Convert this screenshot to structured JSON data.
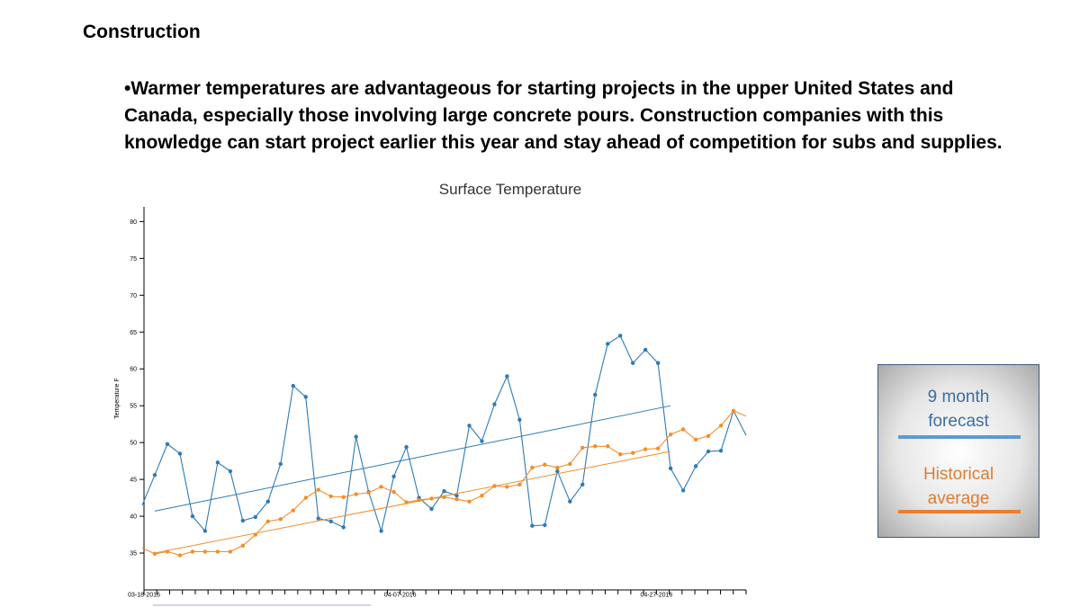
{
  "slide": {
    "heading": "Construction",
    "bullet": "•Warmer temperatures are advantageous for starting projects in the upper United States and Canada, especially those involving large concrete pours.  Construction companies with this knowledge can start project earlier this year and stay ahead of competition for subs and supplies."
  },
  "colors": {
    "forecast": "#2c7bb6",
    "historical": "#f28e2b"
  },
  "chart_data": {
    "type": "line",
    "title": "Surface Temperature",
    "ylabel": "Temperature F",
    "xlabel": "",
    "ylim": [
      30,
      82
    ],
    "y_ticks": [
      35,
      40,
      45,
      50,
      55,
      60,
      65,
      70,
      75,
      80
    ],
    "x_tick_labels": [
      "03-18-2016",
      "04-07-2016",
      "04-27-2016"
    ],
    "x_tick_label_indices": [
      0,
      20,
      40
    ],
    "x_tick_count": 48,
    "series": [
      {
        "name": "9 month forecast",
        "values": [
          41.5,
          45.6,
          49.8,
          48.5,
          40.0,
          38.0,
          47.3,
          46.1,
          39.4,
          39.9,
          42.0,
          47.1,
          57.7,
          56.2,
          39.7,
          39.3,
          38.5,
          50.8,
          43.3,
          38.0,
          45.4,
          49.4,
          42.5,
          41.0,
          43.4,
          42.8,
          52.3,
          50.2,
          55.2,
          59.0,
          53.1,
          38.7,
          38.8,
          46.1,
          42.0,
          44.3,
          56.5,
          63.4,
          64.5,
          60.8,
          62.6,
          60.8,
          46.5,
          43.5,
          46.8,
          48.8,
          48.9,
          54.3,
          51.0
        ],
        "trend": [
          40.7,
          55.0
        ]
      },
      {
        "name": "Historical average",
        "values": [
          35.7,
          34.9,
          35.2,
          34.7,
          35.2,
          35.2,
          35.2,
          35.2,
          36.0,
          37.5,
          39.3,
          39.6,
          40.8,
          42.5,
          43.6,
          42.7,
          42.6,
          43.0,
          43.2,
          44.0,
          43.3,
          41.9,
          42.2,
          42.4,
          42.6,
          42.3,
          42.0,
          42.8,
          44.1,
          44.0,
          44.3,
          46.6,
          47.0,
          46.6,
          47.1,
          49.3,
          49.5,
          49.5,
          48.4,
          48.6,
          49.1,
          49.2,
          51.1,
          51.8,
          50.4,
          50.9,
          52.3,
          54.3,
          53.6
        ],
        "trend": [
          35.0,
          48.8
        ]
      }
    ]
  },
  "legend": {
    "forecast_label": "9 month\nforecast",
    "historical_label": "Historical\naverage"
  }
}
